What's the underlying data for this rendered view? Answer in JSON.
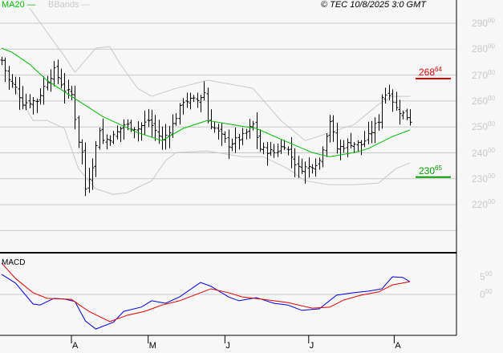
{
  "header": {
    "ma_label": "MA20",
    "bb_label": "BBands",
    "copyright": "© TEC 10/8/2025 3:0 GMT"
  },
  "macd_panel": {
    "title": "MACD"
  },
  "colors": {
    "ma": "#00bb00",
    "bbands": "#c8c8c8",
    "macd": "#0000dd",
    "signal": "#dd0000",
    "resistance": "#dd0000",
    "support": "#009900"
  },
  "chart_data": [
    {
      "type": "ohlc",
      "title": "Price",
      "ylim": [
        21000,
        29800
      ],
      "y_ticks": [
        {
          "main": "290",
          "frac": "00",
          "v": 29000
        },
        {
          "main": "280",
          "frac": "00",
          "v": 28000
        },
        {
          "main": "270",
          "frac": "00",
          "v": 27000
        },
        {
          "main": "260",
          "frac": "00",
          "v": 26000
        },
        {
          "main": "250",
          "frac": "00",
          "v": 25000
        },
        {
          "main": "240",
          "frac": "00",
          "v": 24000
        },
        {
          "main": "230",
          "frac": "00",
          "v": 23000
        },
        {
          "main": "220",
          "frac": "00",
          "v": 22000
        }
      ],
      "grid_values": [
        29000,
        28000,
        27000,
        26000,
        25000,
        24000,
        23000,
        22000,
        21000
      ],
      "x_range": [
        0,
        130
      ],
      "months": [
        {
          "label": "A",
          "i": 20
        },
        {
          "label": "M",
          "i": 42
        },
        {
          "label": "J",
          "i": 64
        },
        {
          "label": "J",
          "i": 88
        },
        {
          "label": "A",
          "i": 112.5
        }
      ],
      "close_keypoints": [
        [
          0,
          27570
        ],
        [
          2,
          26800
        ],
        [
          4,
          26490
        ],
        [
          6,
          25930
        ],
        [
          10,
          26020
        ],
        [
          13,
          26800
        ],
        [
          15,
          27170
        ],
        [
          18,
          26430
        ],
        [
          20,
          26240
        ],
        [
          22,
          24470
        ],
        [
          23,
          24010
        ],
        [
          24,
          22610
        ],
        [
          26,
          23540
        ],
        [
          28,
          24940
        ],
        [
          29,
          24470
        ],
        [
          32,
          24630
        ],
        [
          35,
          25090
        ],
        [
          39,
          24940
        ],
        [
          42,
          25250
        ],
        [
          46,
          24470
        ],
        [
          49,
          25090
        ],
        [
          52,
          26020
        ],
        [
          56,
          26020
        ],
        [
          58,
          26330
        ],
        [
          59,
          25250
        ],
        [
          61,
          24940
        ],
        [
          65,
          24320
        ],
        [
          69,
          24630
        ],
        [
          72,
          25090
        ],
        [
          74,
          24160
        ],
        [
          78,
          24010
        ],
        [
          81,
          24320
        ],
        [
          83,
          23850
        ],
        [
          85,
          23390
        ],
        [
          88,
          23450
        ],
        [
          91,
          23700
        ],
        [
          94,
          25250
        ],
        [
          96,
          24160
        ],
        [
          100,
          24380
        ],
        [
          103,
          24320
        ],
        [
          105,
          24630
        ],
        [
          108,
          25250
        ],
        [
          109,
          26180
        ],
        [
          111,
          26330
        ],
        [
          113,
          25710
        ],
        [
          116,
          25400
        ],
        [
          117,
          25250
        ]
      ],
      "ma20": [
        [
          0,
          28040
        ],
        [
          3,
          27880
        ],
        [
          8,
          27420
        ],
        [
          13,
          26800
        ],
        [
          20,
          26180
        ],
        [
          29,
          25400
        ],
        [
          39,
          24780
        ],
        [
          46,
          24470
        ],
        [
          52,
          24940
        ],
        [
          59,
          25250
        ],
        [
          66,
          25090
        ],
        [
          73,
          24940
        ],
        [
          81,
          24470
        ],
        [
          89,
          24010
        ],
        [
          94,
          23850
        ],
        [
          101,
          24010
        ],
        [
          105,
          24160
        ],
        [
          112,
          24630
        ],
        [
          117,
          24880
        ]
      ],
      "bband_upper": [
        [
          8,
          29590
        ],
        [
          13,
          28660
        ],
        [
          18,
          27730
        ],
        [
          21,
          27110
        ],
        [
          24,
          27570
        ],
        [
          27,
          28040
        ],
        [
          31,
          28100
        ],
        [
          34,
          27420
        ],
        [
          39,
          26490
        ],
        [
          43,
          26180
        ],
        [
          50,
          26490
        ],
        [
          59,
          26800
        ],
        [
          66,
          26640
        ],
        [
          72,
          26490
        ],
        [
          80,
          25250
        ],
        [
          87,
          24470
        ],
        [
          94,
          24780
        ],
        [
          101,
          25090
        ],
        [
          108,
          25870
        ],
        [
          112,
          26180
        ],
        [
          117,
          26180
        ]
      ],
      "bband_lower": [
        [
          3,
          26640
        ],
        [
          9,
          25250
        ],
        [
          13,
          25250
        ],
        [
          18,
          24940
        ],
        [
          22,
          23390
        ],
        [
          27,
          22610
        ],
        [
          32,
          22400
        ],
        [
          36,
          22460
        ],
        [
          43,
          22920
        ],
        [
          47,
          23700
        ],
        [
          50,
          24010
        ],
        [
          59,
          24070
        ],
        [
          69,
          23850
        ],
        [
          75,
          23850
        ],
        [
          82,
          23390
        ],
        [
          87,
          22920
        ],
        [
          94,
          22770
        ],
        [
          101,
          22770
        ],
        [
          108,
          22830
        ],
        [
          113,
          23390
        ],
        [
          117,
          23610
        ]
      ],
      "resistance": {
        "value": 26864,
        "main": "268",
        "frac": "64"
      },
      "support": {
        "value": 23065,
        "main": "230",
        "frac": "65"
      }
    },
    {
      "type": "line",
      "title": "MACD",
      "ylim": [
        -12,
        12
      ],
      "y_ticks": [
        {
          "main": "5",
          "frac": "00",
          "v": 5
        },
        {
          "main": "0",
          "frac": "00",
          "v": 0
        }
      ],
      "series": [
        {
          "name": "MACD",
          "points": [
            [
              0,
              5.7
            ],
            [
              4,
              3.2
            ],
            [
              9,
              -2.7
            ],
            [
              11,
              -3
            ],
            [
              15,
              -1.1
            ],
            [
              18,
              -1.3
            ],
            [
              21,
              -2
            ],
            [
              24,
              -7.5
            ],
            [
              27,
              -9.8
            ],
            [
              32,
              -7.9
            ],
            [
              35,
              -4.8
            ],
            [
              40,
              -3.6
            ],
            [
              43,
              -1.8
            ],
            [
              47,
              -2.5
            ],
            [
              51,
              -0.7
            ],
            [
              57,
              3.4
            ],
            [
              60,
              2.3
            ],
            [
              65,
              -0.7
            ],
            [
              68,
              -1.8
            ],
            [
              73,
              -0.9
            ],
            [
              78,
              -2.5
            ],
            [
              82,
              -3
            ],
            [
              86,
              -4.5
            ],
            [
              91,
              -4.1
            ],
            [
              96,
              -0.2
            ],
            [
              101,
              0.5
            ],
            [
              105,
              0.9
            ],
            [
              109,
              1.6
            ],
            [
              112,
              5
            ],
            [
              115,
              4.8
            ],
            [
              117,
              3.6
            ]
          ]
        },
        {
          "name": "Signal",
          "points": [
            [
              0,
              8.9
            ],
            [
              4,
              4.5
            ],
            [
              9,
              0.5
            ],
            [
              13,
              -1.1
            ],
            [
              20,
              -1.4
            ],
            [
              25,
              -4.8
            ],
            [
              31,
              -7.7
            ],
            [
              36,
              -5.9
            ],
            [
              41,
              -4.8
            ],
            [
              46,
              -3
            ],
            [
              51,
              -1.8
            ],
            [
              60,
              1.6
            ],
            [
              65,
              0.5
            ],
            [
              69,
              -0.7
            ],
            [
              75,
              -1.4
            ],
            [
              82,
              -2.3
            ],
            [
              89,
              -3.9
            ],
            [
              94,
              -3.6
            ],
            [
              98,
              -1.6
            ],
            [
              103,
              -0.2
            ],
            [
              108,
              0.7
            ],
            [
              112,
              2.7
            ],
            [
              117,
              3.6
            ]
          ]
        }
      ]
    }
  ]
}
